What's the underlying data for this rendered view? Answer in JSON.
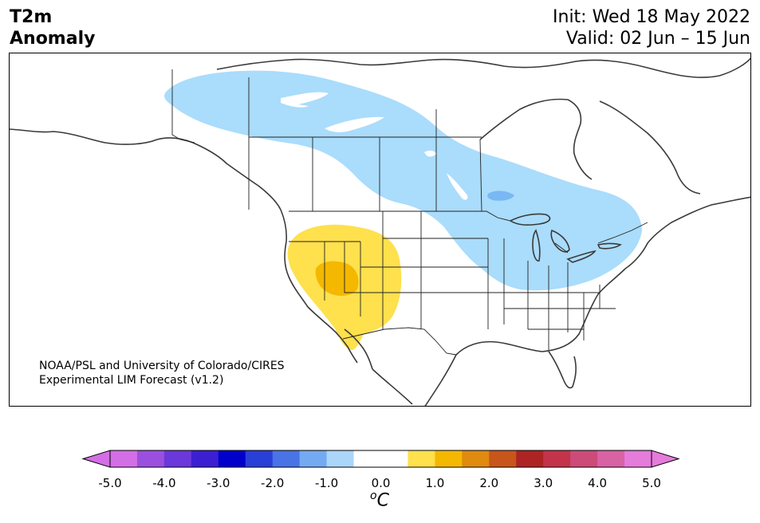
{
  "title_left": [
    "T2m",
    "Anomaly"
  ],
  "title_right": [
    "Init: Wed 18 May 2022",
    "Valid: 02 Jun – 15 Jun"
  ],
  "credit": [
    "NOAA/PSL and University of Colorado/CIRES",
    "Experimental LIM Forecast (v1.2)"
  ],
  "colorbar": {
    "ticks": [
      "-5.0",
      "-4.0",
      "-3.0",
      "-2.0",
      "-1.0",
      "0.0",
      "1.0",
      "2.0",
      "3.0",
      "4.0",
      "5.0"
    ],
    "unit_sup": "o",
    "unit": "C",
    "colors": [
      "#d46ee6",
      "#9b4fdf",
      "#6a38db",
      "#3d1fd3",
      "#0000cc",
      "#2a3ed8",
      "#4a73e6",
      "#74aaf2",
      "#aad6f9",
      "#ffffff",
      "#ffffff",
      "#ffe04d",
      "#f4b800",
      "#e08a10",
      "#c8561a",
      "#ae2424",
      "#c3344b",
      "#cd4b78",
      "#d862a4",
      "#e57bdb"
    ],
    "extend_min_color": "#d46ee6",
    "extend_max_color": "#e57bdb"
  },
  "anomaly_colors": {
    "cool_light": "#aadcfb",
    "cool_medium": "#79b8f2",
    "warm_light": "#ffe04d",
    "warm_medium": "#f4b800"
  },
  "map": {
    "region": "North America",
    "features": [
      "coastlines",
      "country borders",
      "state/province borders"
    ]
  }
}
